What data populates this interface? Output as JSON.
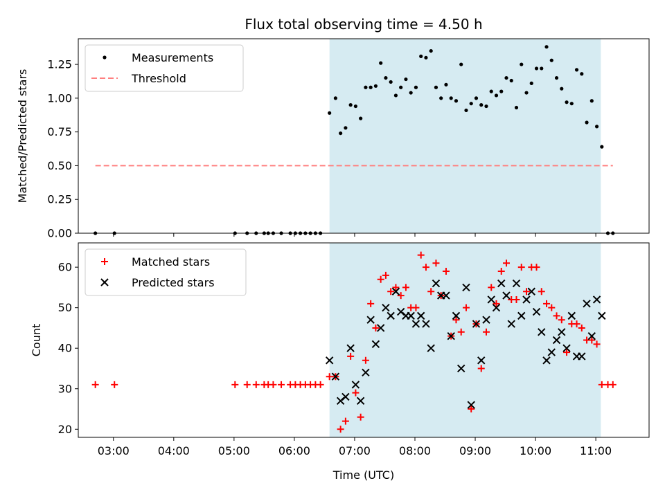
{
  "chart_data": [
    {
      "type": "scatter",
      "title": "Flux total observing time = 4.50 h",
      "xlabel": "",
      "ylabel": "Matched/Predicted stars",
      "xlim": [
        "02:25",
        "11:53"
      ],
      "ylim": [
        0,
        1.44
      ],
      "yticks": [
        "0.00",
        "0.25",
        "0.50",
        "0.75",
        "1.00",
        "1.25"
      ],
      "legend": "top-left",
      "highlight_span": [
        "06:35",
        "11:05"
      ],
      "highlight_color": "#add8e6",
      "series": [
        {
          "name": "Measurements",
          "marker": "dot",
          "color": "#000000",
          "points": [
            [
              "02:42",
              0
            ],
            [
              "03:01",
              0
            ],
            [
              "05:01",
              0
            ],
            [
              "05:13",
              0
            ],
            [
              "05:22",
              0
            ],
            [
              "05:30",
              0
            ],
            [
              "05:34",
              0
            ],
            [
              "05:39",
              0
            ],
            [
              "05:47",
              0
            ],
            [
              "05:56",
              0
            ],
            [
              "06:01",
              0
            ],
            [
              "06:06",
              0
            ],
            [
              "06:11",
              0
            ],
            [
              "06:16",
              0
            ],
            [
              "06:21",
              0
            ],
            [
              "06:26",
              0
            ],
            [
              "06:35",
              0.89
            ],
            [
              "06:41",
              1.0
            ],
            [
              "06:46",
              0.74
            ],
            [
              "06:51",
              0.78
            ],
            [
              "06:56",
              0.95
            ],
            [
              "07:01",
              0.94
            ],
            [
              "07:06",
              0.85
            ],
            [
              "07:11",
              1.08
            ],
            [
              "07:16",
              1.08
            ],
            [
              "07:21",
              1.09
            ],
            [
              "07:26",
              1.26
            ],
            [
              "07:31",
              1.15
            ],
            [
              "07:36",
              1.12
            ],
            [
              "07:41",
              1.02
            ],
            [
              "07:46",
              1.08
            ],
            [
              "07:51",
              1.14
            ],
            [
              "07:56",
              1.04
            ],
            [
              "08:01",
              1.08
            ],
            [
              "08:06",
              1.31
            ],
            [
              "08:11",
              1.3
            ],
            [
              "08:16",
              1.35
            ],
            [
              "08:21",
              1.08
            ],
            [
              "08:26",
              1.0
            ],
            [
              "08:31",
              1.1
            ],
            [
              "08:36",
              1.0
            ],
            [
              "08:41",
              0.98
            ],
            [
              "08:46",
              1.25
            ],
            [
              "08:51",
              0.91
            ],
            [
              "08:56",
              0.96
            ],
            [
              "09:01",
              1.0
            ],
            [
              "09:06",
              0.95
            ],
            [
              "09:11",
              0.94
            ],
            [
              "09:16",
              1.05
            ],
            [
              "09:21",
              1.02
            ],
            [
              "09:26",
              1.05
            ],
            [
              "09:31",
              1.15
            ],
            [
              "09:36",
              1.13
            ],
            [
              "09:41",
              0.93
            ],
            [
              "09:46",
              1.25
            ],
            [
              "09:51",
              1.04
            ],
            [
              "09:56",
              1.11
            ],
            [
              "10:01",
              1.22
            ],
            [
              "10:06",
              1.22
            ],
            [
              "10:11",
              1.38
            ],
            [
              "10:16",
              1.28
            ],
            [
              "10:21",
              1.15
            ],
            [
              "10:26",
              1.07
            ],
            [
              "10:31",
              0.97
            ],
            [
              "10:36",
              0.96
            ],
            [
              "10:41",
              1.21
            ],
            [
              "10:46",
              1.18
            ],
            [
              "10:51",
              0.82
            ],
            [
              "10:56",
              0.98
            ],
            [
              "11:01",
              0.79
            ],
            [
              "11:06",
              0.64
            ],
            [
              "11:12",
              0
            ],
            [
              "11:17",
              0
            ]
          ]
        },
        {
          "name": "Threshold",
          "marker": "dashed-line",
          "color": "#ff7f7f",
          "points": [
            [
              "02:42",
              0.5
            ],
            [
              "11:17",
              0.5
            ]
          ]
        }
      ]
    },
    {
      "type": "scatter",
      "title": "",
      "xlabel": "Time (UTC)",
      "ylabel": "Count",
      "xlim": [
        "02:25",
        "11:53"
      ],
      "ylim": [
        18,
        66
      ],
      "yticks": [
        "20",
        "30",
        "40",
        "50",
        "60"
      ],
      "xticks": [
        "03:00",
        "04:00",
        "05:00",
        "06:00",
        "07:00",
        "08:00",
        "09:00",
        "10:00",
        "11:00"
      ],
      "legend": "top-left",
      "highlight_span": [
        "06:35",
        "11:05"
      ],
      "highlight_color": "#add8e6",
      "series": [
        {
          "name": "Matched stars",
          "marker": "plus",
          "color": "#ff0000",
          "points": [
            [
              "02:42",
              31
            ],
            [
              "03:01",
              31
            ],
            [
              "05:01",
              31
            ],
            [
              "05:13",
              31
            ],
            [
              "05:22",
              31
            ],
            [
              "05:30",
              31
            ],
            [
              "05:34",
              31
            ],
            [
              "05:39",
              31
            ],
            [
              "05:47",
              31
            ],
            [
              "05:56",
              31
            ],
            [
              "06:01",
              31
            ],
            [
              "06:06",
              31
            ],
            [
              "06:11",
              31
            ],
            [
              "06:16",
              31
            ],
            [
              "06:21",
              31
            ],
            [
              "06:26",
              31
            ],
            [
              "06:35",
              33
            ],
            [
              "06:41",
              33
            ],
            [
              "06:46",
              20
            ],
            [
              "06:51",
              22
            ],
            [
              "06:56",
              38
            ],
            [
              "07:01",
              29
            ],
            [
              "07:06",
              23
            ],
            [
              "07:11",
              37
            ],
            [
              "07:16",
              51
            ],
            [
              "07:21",
              45
            ],
            [
              "07:26",
              57
            ],
            [
              "07:31",
              58
            ],
            [
              "07:36",
              54
            ],
            [
              "07:41",
              55
            ],
            [
              "07:46",
              53
            ],
            [
              "07:51",
              55
            ],
            [
              "07:56",
              50
            ],
            [
              "08:01",
              50
            ],
            [
              "08:06",
              63
            ],
            [
              "08:11",
              60
            ],
            [
              "08:16",
              54
            ],
            [
              "08:21",
              61
            ],
            [
              "08:26",
              53
            ],
            [
              "08:31",
              59
            ],
            [
              "08:36",
              43
            ],
            [
              "08:41",
              47
            ],
            [
              "08:46",
              44
            ],
            [
              "08:51",
              50
            ],
            [
              "08:56",
              25
            ],
            [
              "09:01",
              46
            ],
            [
              "09:06",
              35
            ],
            [
              "09:11",
              44
            ],
            [
              "09:16",
              55
            ],
            [
              "09:21",
              51
            ],
            [
              "09:26",
              59
            ],
            [
              "09:31",
              61
            ],
            [
              "09:36",
              52
            ],
            [
              "09:41",
              52
            ],
            [
              "09:46",
              60
            ],
            [
              "09:51",
              54
            ],
            [
              "09:56",
              60
            ],
            [
              "10:01",
              60
            ],
            [
              "10:06",
              54
            ],
            [
              "10:11",
              51
            ],
            [
              "10:16",
              50
            ],
            [
              "10:21",
              48
            ],
            [
              "10:26",
              47
            ],
            [
              "10:31",
              39
            ],
            [
              "10:36",
              46
            ],
            [
              "10:41",
              46
            ],
            [
              "10:46",
              45
            ],
            [
              "10:51",
              42
            ],
            [
              "10:56",
              42
            ],
            [
              "11:01",
              41
            ],
            [
              "11:06",
              31
            ],
            [
              "11:12",
              31
            ],
            [
              "11:17",
              31
            ]
          ]
        },
        {
          "name": "Predicted stars",
          "marker": "x",
          "color": "#000000",
          "points": [
            [
              "06:35",
              37
            ],
            [
              "06:41",
              33
            ],
            [
              "06:46",
              27
            ],
            [
              "06:51",
              28
            ],
            [
              "06:56",
              40
            ],
            [
              "07:01",
              31
            ],
            [
              "07:06",
              27
            ],
            [
              "07:11",
              34
            ],
            [
              "07:16",
              47
            ],
            [
              "07:21",
              41
            ],
            [
              "07:26",
              45
            ],
            [
              "07:31",
              50
            ],
            [
              "07:36",
              48
            ],
            [
              "07:41",
              54
            ],
            [
              "07:46",
              49
            ],
            [
              "07:51",
              48
            ],
            [
              "07:56",
              48
            ],
            [
              "08:01",
              46
            ],
            [
              "08:06",
              48
            ],
            [
              "08:11",
              46
            ],
            [
              "08:16",
              40
            ],
            [
              "08:21",
              56
            ],
            [
              "08:26",
              53
            ],
            [
              "08:31",
              53
            ],
            [
              "08:36",
              43
            ],
            [
              "08:41",
              48
            ],
            [
              "08:46",
              35
            ],
            [
              "08:51",
              55
            ],
            [
              "08:56",
              26
            ],
            [
              "09:01",
              46
            ],
            [
              "09:06",
              37
            ],
            [
              "09:11",
              47
            ],
            [
              "09:16",
              52
            ],
            [
              "09:21",
              50
            ],
            [
              "09:26",
              56
            ],
            [
              "09:31",
              53
            ],
            [
              "09:36",
              46
            ],
            [
              "09:41",
              56
            ],
            [
              "09:46",
              48
            ],
            [
              "09:51",
              52
            ],
            [
              "09:56",
              54
            ],
            [
              "10:01",
              49
            ],
            [
              "10:06",
              44
            ],
            [
              "10:11",
              37
            ],
            [
              "10:16",
              39
            ],
            [
              "10:21",
              42
            ],
            [
              "10:26",
              44
            ],
            [
              "10:31",
              40
            ],
            [
              "10:36",
              48
            ],
            [
              "10:41",
              38
            ],
            [
              "10:46",
              38
            ],
            [
              "10:51",
              51
            ],
            [
              "10:56",
              43
            ],
            [
              "11:01",
              52
            ],
            [
              "11:06",
              48
            ]
          ]
        }
      ]
    }
  ]
}
